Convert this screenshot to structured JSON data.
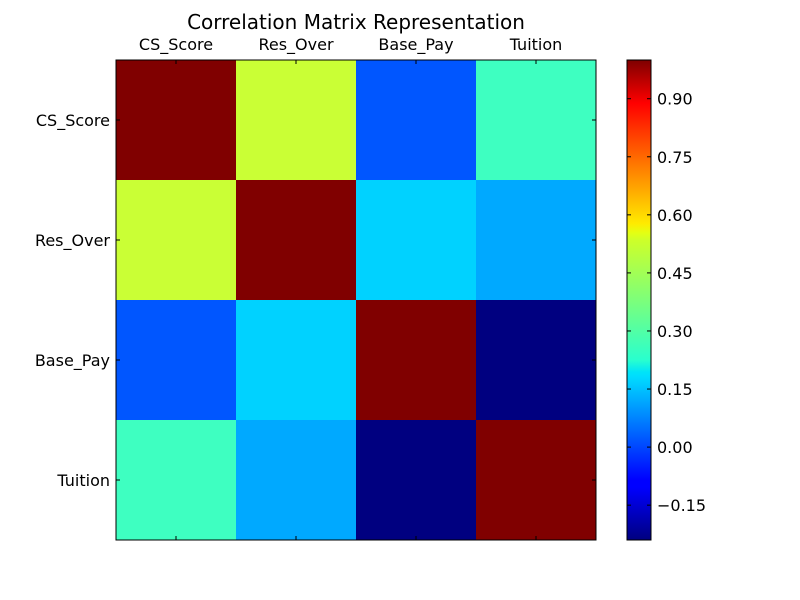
{
  "chart_data": {
    "type": "heatmap",
    "title": "Correlation Matrix Representation",
    "xlabel": "",
    "ylabel": "",
    "x_tick_position": "top",
    "columns": [
      "CS_Score",
      "Res_Over",
      "Base_Pay",
      "Tuition"
    ],
    "rows": [
      "CS_Score",
      "Res_Over",
      "Base_Pay",
      "Tuition"
    ],
    "values": [
      [
        1.0,
        0.47,
        0.02,
        0.3
      ],
      [
        0.47,
        1.0,
        0.17,
        0.12
      ],
      [
        0.02,
        0.17,
        1.0,
        -0.24
      ],
      [
        0.3,
        0.12,
        -0.24,
        1.0
      ]
    ],
    "colormap": "jet",
    "colorbar": {
      "vmin": -0.24,
      "vmax": 1.0,
      "ticks": [
        0.9,
        0.75,
        0.6,
        0.45,
        0.3,
        0.15,
        0.0,
        -0.15
      ],
      "tick_labels": [
        "0.90",
        "0.75",
        "0.60",
        "0.45",
        "0.30",
        "0.15",
        "0.00",
        "−0.15"
      ]
    }
  }
}
